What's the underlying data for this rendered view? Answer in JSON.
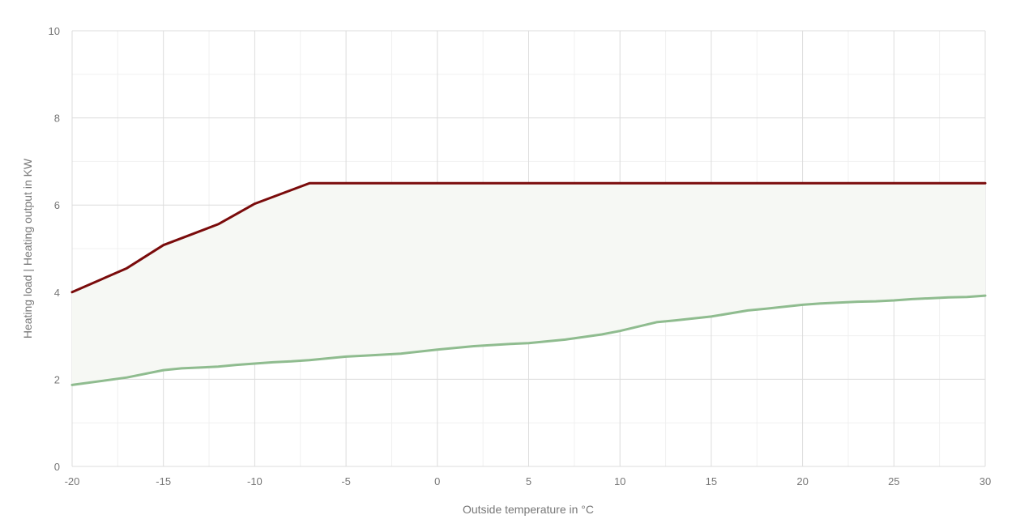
{
  "chart_data": {
    "type": "line",
    "title": "",
    "xlabel": "Outside temperature in °C",
    "ylabel": "Heating load | Heating output in KW",
    "xlim": [
      -20,
      30
    ],
    "ylim": [
      0,
      10
    ],
    "x_ticks": [
      -20,
      -15,
      -10,
      -5,
      0,
      5,
      10,
      15,
      20,
      25,
      30
    ],
    "y_ticks": [
      0,
      2,
      4,
      6,
      8,
      10
    ],
    "grid": true,
    "minor_grid": true,
    "legend": "none",
    "fill_between_series": true,
    "series": [
      {
        "color": "#7a0b0b",
        "points": [
          [
            -20,
            4.0
          ],
          [
            -17,
            4.55
          ],
          [
            -15,
            5.08
          ],
          [
            -12,
            5.56
          ],
          [
            -10,
            6.03
          ],
          [
            -7,
            6.5
          ],
          [
            30,
            6.5
          ]
        ]
      },
      {
        "color": "#8fbc8f",
        "points": [
          [
            -20,
            1.87
          ],
          [
            -17,
            2.04
          ],
          [
            -15,
            2.21
          ],
          [
            -14,
            2.25
          ],
          [
            -12,
            2.29
          ],
          [
            -11,
            2.33
          ],
          [
            -10,
            2.36
          ],
          [
            -9,
            2.39
          ],
          [
            -8,
            2.41
          ],
          [
            -7,
            2.44
          ],
          [
            -5,
            2.52
          ],
          [
            -4,
            2.54
          ],
          [
            -2,
            2.59
          ],
          [
            0,
            2.68
          ],
          [
            2,
            2.76
          ],
          [
            4,
            2.81
          ],
          [
            5,
            2.83
          ],
          [
            7,
            2.91
          ],
          [
            9,
            3.03
          ],
          [
            10,
            3.11
          ],
          [
            12,
            3.31
          ],
          [
            13,
            3.35
          ],
          [
            15,
            3.44
          ],
          [
            17,
            3.58
          ],
          [
            18,
            3.62
          ],
          [
            20,
            3.71
          ],
          [
            21,
            3.74
          ],
          [
            23,
            3.78
          ],
          [
            24,
            3.79
          ],
          [
            25,
            3.81
          ],
          [
            26,
            3.84
          ],
          [
            28,
            3.88
          ],
          [
            29,
            3.89
          ],
          [
            30,
            3.92
          ]
        ]
      }
    ],
    "fill_color": "#f6f8f4"
  }
}
